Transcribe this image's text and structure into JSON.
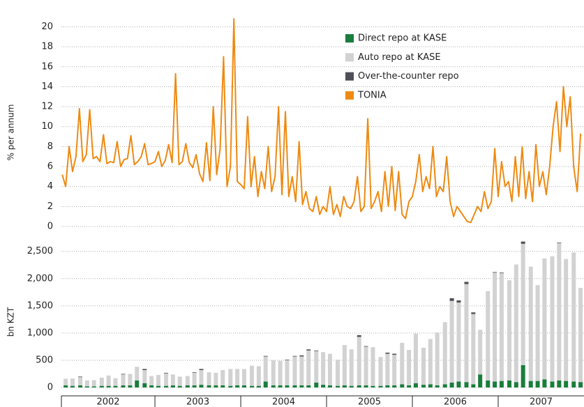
{
  "chart_data": [
    {
      "type": "line",
      "ylabel": "% per annum",
      "xlim": [
        2001.91,
        2008.0
      ],
      "ylim": [
        0,
        20.8
      ],
      "yticks": [
        0,
        2,
        4,
        6,
        8,
        10,
        12,
        14,
        16,
        18,
        20
      ],
      "grid": true,
      "legend": "top-right",
      "x": [
        2001.92,
        2001.96,
        2002.0,
        2002.04,
        2002.08,
        2002.12,
        2002.16,
        2002.2,
        2002.24,
        2002.28,
        2002.32,
        2002.36,
        2002.4,
        2002.44,
        2002.48,
        2002.52,
        2002.56,
        2002.6,
        2002.64,
        2002.68,
        2002.72,
        2002.76,
        2002.8,
        2002.84,
        2002.88,
        2002.92,
        2002.96,
        2003.0,
        2003.04,
        2003.08,
        2003.12,
        2003.16,
        2003.2,
        2003.24,
        2003.28,
        2003.32,
        2003.36,
        2003.4,
        2003.44,
        2003.48,
        2003.52,
        2003.56,
        2003.6,
        2003.64,
        2003.68,
        2003.72,
        2003.76,
        2003.8,
        2003.84,
        2003.88,
        2003.92,
        2003.96,
        2004.0,
        2004.04,
        2004.08,
        2004.12,
        2004.16,
        2004.2,
        2004.24,
        2004.28,
        2004.32,
        2004.36,
        2004.4,
        2004.44,
        2004.48,
        2004.52,
        2004.56,
        2004.6,
        2004.64,
        2004.68,
        2004.72,
        2004.76,
        2004.8,
        2004.84,
        2004.88,
        2004.92,
        2004.96,
        2005.0,
        2005.04,
        2005.08,
        2005.12,
        2005.16,
        2005.2,
        2005.24,
        2005.28,
        2005.32,
        2005.36,
        2005.4,
        2005.44,
        2005.48,
        2005.52,
        2005.56,
        2005.6,
        2005.64,
        2005.68,
        2005.72,
        2005.76,
        2005.8,
        2005.84,
        2005.88,
        2005.92,
        2005.96,
        2006.0,
        2006.04,
        2006.08,
        2006.12,
        2006.16,
        2006.2,
        2006.24,
        2006.28,
        2006.32,
        2006.36,
        2006.4,
        2006.44,
        2006.48,
        2006.52,
        2006.56,
        2006.6,
        2006.64,
        2006.68,
        2006.72,
        2006.76,
        2006.8,
        2006.84,
        2006.88,
        2006.92,
        2006.96,
        2007.0,
        2007.04,
        2007.08,
        2007.12,
        2007.16,
        2007.2,
        2007.24,
        2007.28,
        2007.32,
        2007.36,
        2007.4,
        2007.44,
        2007.48,
        2007.52,
        2007.56,
        2007.6,
        2007.64,
        2007.68,
        2007.72,
        2007.76,
        2007.8,
        2007.84,
        2007.88,
        2007.92,
        2007.96
      ],
      "series": [
        {
          "name": "TONIA",
          "color": "#ee8a12",
          "values": [
            5.2,
            4.0,
            8.0,
            5.5,
            7.0,
            11.8,
            6.5,
            7.2,
            11.7,
            6.8,
            7.0,
            6.5,
            9.2,
            6.3,
            6.5,
            6.4,
            8.5,
            6.0,
            6.7,
            6.8,
            9.1,
            6.2,
            6.5,
            7.0,
            8.3,
            6.2,
            6.3,
            6.5,
            7.5,
            6.0,
            6.6,
            8.2,
            6.4,
            15.3,
            6.2,
            6.5,
            8.3,
            6.4,
            5.9,
            7.2,
            5.3,
            4.5,
            8.4,
            4.6,
            12.0,
            5.2,
            7.8,
            17.0,
            4.0,
            6.0,
            20.8,
            4.5,
            4.2,
            3.8,
            11.0,
            4.0,
            7.0,
            3.0,
            5.5,
            3.8,
            8.0,
            3.5,
            5.0,
            12.0,
            3.2,
            11.5,
            3.0,
            5.0,
            2.5,
            8.5,
            2.2,
            3.5,
            1.8,
            1.5,
            3.0,
            1.2,
            2.0,
            1.5,
            4.0,
            1.2,
            2.2,
            1.0,
            3.0,
            2.0,
            1.8,
            2.5,
            5.0,
            1.5,
            2.0,
            10.8,
            1.8,
            2.5,
            3.5,
            1.5,
            5.5,
            2.0,
            6.0,
            1.6,
            5.5,
            1.2,
            0.8,
            2.5,
            3.0,
            4.5,
            7.2,
            3.5,
            5.0,
            3.8,
            8.0,
            3.0,
            4.0,
            3.5,
            7.0,
            2.5,
            1.0,
            2.0,
            1.5,
            1.0,
            0.5,
            0.4,
            1.2,
            2.0,
            1.5,
            3.5,
            1.8,
            2.5,
            7.8,
            3.0,
            6.5,
            4.0,
            4.5,
            2.5,
            7.0,
            3.0,
            8.0,
            2.8,
            5.5,
            2.5,
            8.2,
            4.0,
            5.5,
            3.2,
            6.0,
            10.0,
            12.5,
            7.5,
            14.0,
            10.0,
            13.0,
            6.0,
            3.5,
            9.3
          ]
        }
      ]
    },
    {
      "type": "stacked_bar",
      "ylabel": "bn KZT",
      "xlim": [
        2001.91,
        2008.0
      ],
      "xticks": [
        2003,
        2004,
        2005,
        2006,
        2007
      ],
      "year_labels": [
        "2002",
        "2003",
        "2004",
        "2005",
        "2006",
        "2007"
      ],
      "ylim": [
        0,
        2650
      ],
      "yticks": [
        0,
        500,
        {
          "value": 1000,
          "label": "1,000"
        },
        {
          "value": 1500,
          "label": "1,500"
        },
        {
          "value": 2000,
          "label": "2,000"
        },
        {
          "value": 2500,
          "label": "2,500"
        }
      ],
      "grid": true,
      "x": [
        2001.96,
        2002.04,
        2002.13,
        2002.21,
        2002.29,
        2002.38,
        2002.46,
        2002.54,
        2002.63,
        2002.71,
        2002.79,
        2002.88,
        2002.96,
        2003.04,
        2003.13,
        2003.21,
        2003.29,
        2003.38,
        2003.46,
        2003.54,
        2003.63,
        2003.71,
        2003.79,
        2003.88,
        2003.96,
        2004.04,
        2004.13,
        2004.21,
        2004.29,
        2004.38,
        2004.46,
        2004.54,
        2004.63,
        2004.71,
        2004.79,
        2004.88,
        2004.96,
        2005.04,
        2005.13,
        2005.21,
        2005.29,
        2005.38,
        2005.46,
        2005.54,
        2005.63,
        2005.71,
        2005.79,
        2005.88,
        2005.96,
        2006.04,
        2006.13,
        2006.21,
        2006.29,
        2006.38,
        2006.46,
        2006.54,
        2006.63,
        2006.71,
        2006.79,
        2006.88,
        2006.96,
        2007.04,
        2007.13,
        2007.21,
        2007.29,
        2007.38,
        2007.46,
        2007.54,
        2007.63,
        2007.71,
        2007.79,
        2007.88,
        2007.96
      ],
      "series": [
        {
          "name": "Direct repo at KASE",
          "color": "#1a7d3c",
          "values": [
            40,
            30,
            40,
            20,
            20,
            30,
            30,
            30,
            40,
            40,
            130,
            80,
            40,
            30,
            30,
            40,
            30,
            40,
            40,
            50,
            40,
            40,
            40,
            30,
            40,
            40,
            30,
            30,
            110,
            40,
            40,
            40,
            40,
            40,
            40,
            90,
            50,
            40,
            30,
            40,
            30,
            40,
            40,
            30,
            30,
            40,
            40,
            60,
            40,
            80,
            50,
            60,
            40,
            60,
            90,
            110,
            100,
            60,
            240,
            130,
            110,
            120,
            130,
            100,
            410,
            120,
            120,
            150,
            110,
            130,
            120,
            110,
            100
          ]
        },
        {
          "name": "Auto repo at KASE",
          "color": "#d2d2d2",
          "values": [
            120,
            135,
            150,
            110,
            115,
            150,
            190,
            140,
            200,
            210,
            250,
            240,
            170,
            200,
            230,
            200,
            170,
            170,
            230,
            270,
            240,
            230,
            280,
            310,
            300,
            300,
            370,
            360,
            460,
            460,
            450,
            460,
            530,
            530,
            640,
            580,
            600,
            580,
            480,
            740,
            670,
            890,
            710,
            710,
            530,
            580,
            560,
            760,
            650,
            910,
            680,
            830,
            970,
            1140,
            1500,
            1450,
            1800,
            1290,
            820,
            1640,
            2000,
            1980,
            1840,
            2160,
            2230,
            2100,
            1760,
            2220,
            2300,
            2520,
            2240,
            2370,
            1730
          ]
        },
        {
          "name": "Over-the-counter repo",
          "color": "#4e4e56",
          "values": [
            0,
            0,
            10,
            0,
            0,
            0,
            0,
            0,
            10,
            0,
            0,
            20,
            0,
            0,
            10,
            0,
            0,
            0,
            10,
            20,
            0,
            0,
            0,
            0,
            0,
            0,
            0,
            0,
            10,
            0,
            0,
            10,
            10,
            20,
            20,
            10,
            0,
            0,
            0,
            0,
            0,
            30,
            10,
            0,
            0,
            20,
            20,
            0,
            0,
            0,
            0,
            0,
            0,
            0,
            50,
            40,
            40,
            30,
            0,
            0,
            10,
            10,
            0,
            0,
            40,
            0,
            0,
            0,
            0,
            10,
            0,
            0,
            0
          ]
        }
      ]
    }
  ]
}
